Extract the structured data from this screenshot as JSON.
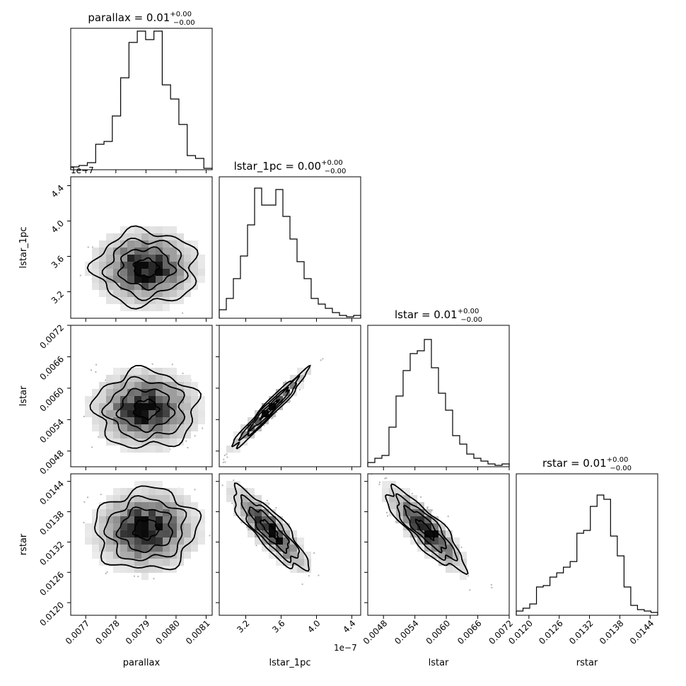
{
  "chart_data": {
    "type": "corner",
    "parameters": [
      {
        "name": "parallax",
        "axis_label": "parallax",
        "title_main": "parallax = 0.01",
        "title_sup": "+0.00",
        "title_sub": "−0.00",
        "range": [
          0.00765,
          0.00812
        ],
        "ticks": [
          0.0077,
          0.0078,
          0.0079,
          0.008,
          0.0081
        ],
        "tick_labels": [
          "0.0077",
          "0.0078",
          "0.0079",
          "0.0080",
          "0.0081"
        ],
        "mean": 0.0079,
        "sd": 8e-05,
        "offset_text": ""
      },
      {
        "name": "lstar_1pc",
        "axis_label": "lstar_1pc",
        "title_main": "lstar_1pc = 0.00",
        "title_sup": "+0.00",
        "title_sub": "−0.00",
        "range": [
          2.9,
          4.5
        ],
        "ticks": [
          3.2,
          3.6,
          4.0,
          4.4
        ],
        "tick_labels": [
          "3.2",
          "3.6",
          "4.0",
          "4.4"
        ],
        "mean": 3.47,
        "sd": 0.2,
        "offset_text": "1e−7"
      },
      {
        "name": "lstar",
        "axis_label": "lstar",
        "title_main": "lstar = 0.01",
        "title_sup": "+0.00",
        "title_sub": "−0.00",
        "range": [
          0.0045,
          0.0072
        ],
        "ticks": [
          0.0048,
          0.0054,
          0.006,
          0.0066,
          0.0072
        ],
        "tick_labels": [
          "0.0048",
          "0.0054",
          "0.0060",
          "0.0066",
          "0.0072"
        ],
        "mean": 0.0056,
        "sd": 0.00035,
        "offset_text": ""
      },
      {
        "name": "rstar",
        "axis_label": "rstar",
        "title_main": "rstar = 0.01",
        "title_sup": "+0.00",
        "title_sub": "−0.00",
        "range": [
          0.01175,
          0.01455
        ],
        "ticks": [
          0.012,
          0.0126,
          0.0132,
          0.0138,
          0.0144
        ],
        "tick_labels": [
          "0.0120",
          "0.0126",
          "0.0132",
          "0.0138",
          "0.0144"
        ],
        "mean": 0.01345,
        "sd": 0.00038,
        "offset_text": ""
      }
    ],
    "histograms": [
      [
        0.02,
        0.03,
        0.05,
        0.18,
        0.2,
        0.38,
        0.65,
        0.9,
        0.98,
        0.92,
        0.98,
        0.6,
        0.5,
        0.32,
        0.1,
        0.08,
        0.01
      ],
      [
        0.06,
        0.14,
        0.28,
        0.44,
        0.66,
        0.92,
        0.8,
        0.8,
        0.91,
        0.72,
        0.56,
        0.4,
        0.28,
        0.14,
        0.1,
        0.07,
        0.04,
        0.02,
        0.01,
        0.02
      ],
      [
        0.03,
        0.06,
        0.08,
        0.28,
        0.5,
        0.68,
        0.8,
        0.82,
        0.9,
        0.7,
        0.52,
        0.4,
        0.22,
        0.16,
        0.09,
        0.06,
        0.04,
        0.02,
        0.01,
        0.02
      ],
      [
        0.03,
        0.05,
        0.08,
        0.2,
        0.21,
        0.27,
        0.3,
        0.34,
        0.38,
        0.58,
        0.6,
        0.77,
        0.85,
        0.82,
        0.56,
        0.42,
        0.2,
        0.07,
        0.04,
        0.03,
        0.02
      ]
    ],
    "correlations": {
      "1-0": 0.0,
      "2-0": 0.0,
      "2-1": 0.97,
      "3-0": 0.05,
      "3-1": -0.85,
      "3-2": -0.85
    },
    "contour_levels": [
      0.5,
      1.1,
      1.6,
      2.1
    ]
  }
}
